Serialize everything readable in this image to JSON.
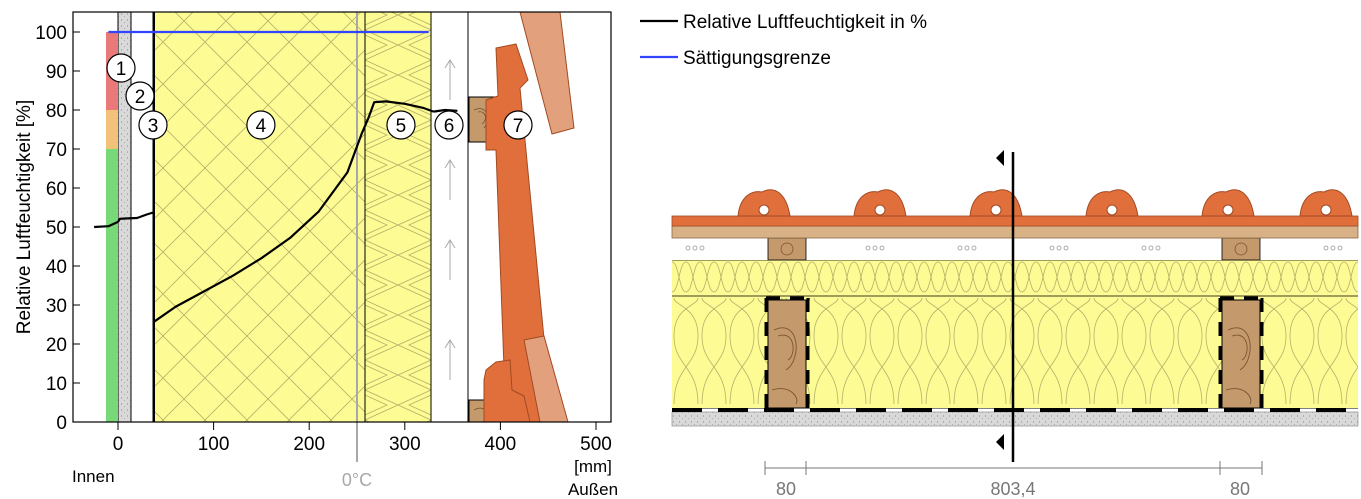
{
  "chart_data": {
    "type": "line",
    "ylabel": "Relative Luftfeuchtigkeit [%]",
    "xlabel": "[mm]",
    "x_left_label": "Innen",
    "x_right_label": "Außen",
    "zero_c_label": "0°C",
    "xlim": [
      -30,
      510
    ],
    "ylim": [
      0,
      105
    ],
    "x_ticks": [
      0,
      100,
      200,
      300,
      400,
      500
    ],
    "y_ticks": [
      0,
      10,
      20,
      30,
      40,
      50,
      60,
      70,
      80,
      90,
      100
    ],
    "zero_c_x": 250,
    "series": [
      {
        "name": "Relative Luftfeuchtigkeit in %",
        "color": "#000000",
        "segments": [
          [
            [
              -25,
              50.0
            ],
            [
              -10,
              50.2
            ],
            [
              0,
              51.3
            ]
          ],
          [
            [
              0,
              51.3
            ],
            [
              2,
              52.1
            ],
            [
              10,
              52.2
            ]
          ],
          [
            [
              10,
              52.2
            ],
            [
              20,
              52.3
            ],
            [
              30,
              53.2
            ],
            [
              35,
              53.6
            ],
            [
              37,
              53.7
            ]
          ],
          [
            [
              37,
              25.6
            ],
            [
              60,
              29.5
            ],
            [
              90,
              33.5
            ],
            [
              120,
              37.5
            ],
            [
              150,
              42.0
            ],
            [
              180,
              47.2
            ],
            [
              210,
              54.0
            ],
            [
              240,
              64.0
            ],
            [
              255,
              74.0
            ],
            [
              262,
              78.0
            ]
          ],
          [
            [
              262,
              78.0
            ],
            [
              268,
              82.0
            ],
            [
              280,
              82.2
            ],
            [
              300,
              81.6
            ],
            [
              320,
              80.5
            ],
            [
              330,
              79.6
            ]
          ],
          [
            [
              330,
              79.6
            ],
            [
              342,
              80.0
            ],
            [
              355,
              79.8
            ]
          ]
        ]
      },
      {
        "name": "Sättigungsgrenze",
        "color": "#3344ff",
        "segments": [
          [
            [
              -10,
              100
            ],
            [
              325,
              100
            ]
          ]
        ]
      }
    ],
    "humidity_bar": [
      {
        "from": 0,
        "to": 70,
        "color": "#77d977"
      },
      {
        "from": 70,
        "to": 80,
        "color": "#f2c27a"
      },
      {
        "from": 80,
        "to": 100,
        "color": "#ea7a7a"
      }
    ],
    "layers": [
      {
        "id": "1",
        "label": "1",
        "from": 0,
        "to": 10
      },
      {
        "id": "2",
        "label": "2",
        "from": 10,
        "to": 35
      },
      {
        "id": "3",
        "label": "3",
        "from": 35,
        "to": 37
      },
      {
        "id": "4",
        "label": "4",
        "from": 37,
        "to": 262
      },
      {
        "id": "5",
        "label": "5",
        "from": 262,
        "to": 330
      },
      {
        "id": "6",
        "label": "6",
        "from": 330,
        "to": 368
      },
      {
        "id": "7",
        "label": "7",
        "from": 368,
        "to": 470
      }
    ]
  },
  "legend": [
    {
      "label": "Relative Luftfeuchtigkeit in %",
      "color": "#000000"
    },
    {
      "label": "Sättigungsgrenze",
      "color": "#3344ff"
    }
  ],
  "section": {
    "dimensions": [
      "80",
      "803,4",
      "80"
    ]
  }
}
